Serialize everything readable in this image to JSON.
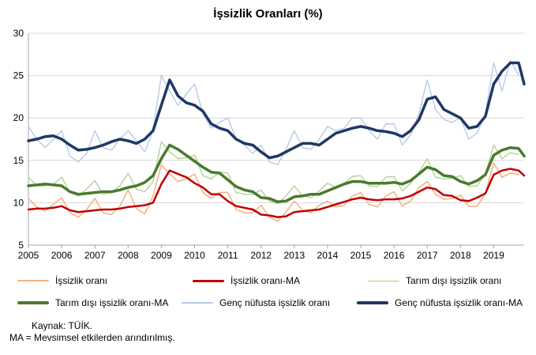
{
  "chart_data": {
    "type": "line",
    "title": "İşsizlik Oranları (%)",
    "xlabel": "",
    "ylabel": "",
    "ylim": [
      5,
      30
    ],
    "yticks": [
      "5",
      "10",
      "15",
      "20",
      "25",
      "30"
    ],
    "xlim": [
      "2005-01",
      "2019-12"
    ],
    "xticks": [
      "2005",
      "2006",
      "2007",
      "2008",
      "2009",
      "2010",
      "2011",
      "2012",
      "2013",
      "2014",
      "2015",
      "2016",
      "2017",
      "2018",
      "2019"
    ],
    "grid": "horizontal",
    "legend_position": "bottom",
    "series": [
      {
        "name": "İşsizlik oranı",
        "color": "#F4B183",
        "width": 1.5,
        "x": [
          "2005-01",
          "2005-04",
          "2005-07",
          "2005-10",
          "2006-01",
          "2006-04",
          "2006-07",
          "2006-10",
          "2007-01",
          "2007-04",
          "2007-07",
          "2007-10",
          "2008-01",
          "2008-04",
          "2008-07",
          "2008-10",
          "2009-01",
          "2009-04",
          "2009-07",
          "2009-10",
          "2010-01",
          "2010-04",
          "2010-07",
          "2010-10",
          "2011-01",
          "2011-04",
          "2011-07",
          "2011-10",
          "2012-01",
          "2012-04",
          "2012-07",
          "2012-10",
          "2013-01",
          "2013-04",
          "2013-07",
          "2013-10",
          "2014-01",
          "2014-04",
          "2014-07",
          "2014-10",
          "2015-01",
          "2015-04",
          "2015-07",
          "2015-10",
          "2016-01",
          "2016-04",
          "2016-07",
          "2016-10",
          "2017-01",
          "2017-04",
          "2017-07",
          "2017-10",
          "2018-01",
          "2018-04",
          "2018-07",
          "2018-10",
          "2019-01",
          "2019-04",
          "2019-07",
          "2019-10"
        ],
        "y": [
          10.5,
          9.5,
          9.0,
          9.8,
          10.6,
          8.8,
          8.3,
          9.2,
          10.5,
          8.8,
          8.6,
          9.6,
          11.5,
          9.3,
          8.7,
          10.8,
          14.5,
          13.4,
          12.5,
          12.8,
          13.4,
          11.2,
          10.5,
          11.2,
          11.2,
          9.2,
          8.8,
          8.8,
          9.7,
          8.3,
          7.8,
          8.9,
          10.2,
          9.1,
          8.8,
          9.7,
          10.2,
          9.5,
          9.7,
          10.8,
          11.2,
          9.8,
          9.5,
          10.8,
          11.3,
          9.6,
          10.2,
          11.8,
          12.5,
          11.0,
          10.4,
          10.5,
          10.9,
          9.6,
          9.6,
          11.1,
          14.7,
          13.0,
          13.5,
          13.3
        ]
      },
      {
        "name": "İşsizlik oranı-MA",
        "color": "#C00000",
        "width": 2.5,
        "x": [
          "2005-01",
          "2005-04",
          "2005-07",
          "2005-10",
          "2006-01",
          "2006-04",
          "2006-07",
          "2006-10",
          "2007-01",
          "2007-04",
          "2007-07",
          "2007-10",
          "2008-01",
          "2008-04",
          "2008-07",
          "2008-10",
          "2009-01",
          "2009-04",
          "2009-07",
          "2009-10",
          "2010-01",
          "2010-04",
          "2010-07",
          "2010-10",
          "2011-01",
          "2011-04",
          "2011-07",
          "2011-10",
          "2012-01",
          "2012-04",
          "2012-07",
          "2012-10",
          "2013-01",
          "2013-04",
          "2013-07",
          "2013-10",
          "2014-01",
          "2014-04",
          "2014-07",
          "2014-10",
          "2015-01",
          "2015-04",
          "2015-07",
          "2015-10",
          "2016-01",
          "2016-04",
          "2016-07",
          "2016-10",
          "2017-01",
          "2017-04",
          "2017-07",
          "2017-10",
          "2018-01",
          "2018-04",
          "2018-07",
          "2018-10",
          "2019-01",
          "2019-04",
          "2019-07",
          "2019-10",
          "2019-12"
        ],
        "y": [
          9.2,
          9.3,
          9.3,
          9.4,
          9.6,
          9.1,
          8.9,
          9.0,
          9.1,
          9.2,
          9.2,
          9.3,
          9.5,
          9.6,
          9.7,
          10.0,
          12.2,
          13.8,
          13.4,
          13.0,
          12.3,
          11.8,
          11.0,
          11.0,
          10.2,
          9.6,
          9.4,
          9.2,
          8.6,
          8.5,
          8.3,
          8.4,
          8.9,
          9.0,
          9.1,
          9.2,
          9.5,
          9.8,
          10.1,
          10.4,
          10.6,
          10.4,
          10.3,
          10.4,
          10.4,
          10.5,
          10.8,
          11.3,
          11.8,
          11.6,
          10.9,
          10.8,
          10.3,
          10.2,
          10.6,
          11.1,
          13.3,
          13.8,
          14.0,
          13.8,
          13.2
        ]
      },
      {
        "name": "Tarım dışı işsizlik oranı",
        "color": "#A9D18E",
        "width": 1.3,
        "x": [
          "2005-01",
          "2005-04",
          "2005-07",
          "2005-10",
          "2006-01",
          "2006-04",
          "2006-07",
          "2006-10",
          "2007-01",
          "2007-04",
          "2007-07",
          "2007-10",
          "2008-01",
          "2008-04",
          "2008-07",
          "2008-10",
          "2009-01",
          "2009-04",
          "2009-07",
          "2009-10",
          "2010-01",
          "2010-04",
          "2010-07",
          "2010-10",
          "2011-01",
          "2011-04",
          "2011-07",
          "2011-10",
          "2012-01",
          "2012-04",
          "2012-07",
          "2012-10",
          "2013-01",
          "2013-04",
          "2013-07",
          "2013-10",
          "2014-01",
          "2014-04",
          "2014-07",
          "2014-10",
          "2015-01",
          "2015-04",
          "2015-07",
          "2015-10",
          "2016-01",
          "2016-04",
          "2016-07",
          "2016-10",
          "2017-01",
          "2017-04",
          "2017-07",
          "2017-10",
          "2018-01",
          "2018-04",
          "2018-07",
          "2018-10",
          "2019-01",
          "2019-04",
          "2019-07",
          "2019-10"
        ],
        "y": [
          13.0,
          12.0,
          12.0,
          12.2,
          13.0,
          11.2,
          10.8,
          11.6,
          12.6,
          11.0,
          11.2,
          12.0,
          13.5,
          11.6,
          11.3,
          12.5,
          17.2,
          16.0,
          15.2,
          15.3,
          15.6,
          13.2,
          12.8,
          13.6,
          13.5,
          11.2,
          11.0,
          11.0,
          11.5,
          10.2,
          9.9,
          10.8,
          12.0,
          10.8,
          10.6,
          11.4,
          12.3,
          11.8,
          12.3,
          13.1,
          13.2,
          12.0,
          11.9,
          13.0,
          13.1,
          11.4,
          12.3,
          13.6,
          15.2,
          13.0,
          12.8,
          12.9,
          13.2,
          11.9,
          12.0,
          13.4,
          16.8,
          15.2,
          15.9,
          15.7
        ]
      },
      {
        "name": "Tarım dışı işsizlik oranı-MA",
        "color": "#4A7A2E",
        "width": 3.5,
        "x": [
          "2005-01",
          "2005-04",
          "2005-07",
          "2005-10",
          "2006-01",
          "2006-04",
          "2006-07",
          "2006-10",
          "2007-01",
          "2007-04",
          "2007-07",
          "2007-10",
          "2008-01",
          "2008-04",
          "2008-07",
          "2008-10",
          "2009-01",
          "2009-04",
          "2009-07",
          "2009-10",
          "2010-01",
          "2010-04",
          "2010-07",
          "2010-10",
          "2011-01",
          "2011-04",
          "2011-07",
          "2011-10",
          "2012-01",
          "2012-04",
          "2012-07",
          "2012-10",
          "2013-01",
          "2013-04",
          "2013-07",
          "2013-10",
          "2014-01",
          "2014-04",
          "2014-07",
          "2014-10",
          "2015-01",
          "2015-04",
          "2015-07",
          "2015-10",
          "2016-01",
          "2016-04",
          "2016-07",
          "2016-10",
          "2017-01",
          "2017-04",
          "2017-07",
          "2017-10",
          "2018-01",
          "2018-04",
          "2018-07",
          "2018-10",
          "2019-01",
          "2019-04",
          "2019-07",
          "2019-10",
          "2019-12"
        ],
        "y": [
          12.0,
          12.1,
          12.2,
          12.1,
          12.0,
          11.3,
          11.0,
          11.1,
          11.2,
          11.3,
          11.3,
          11.5,
          11.8,
          12.0,
          12.4,
          13.2,
          15.2,
          16.8,
          16.3,
          15.6,
          14.9,
          14.2,
          13.6,
          13.5,
          12.7,
          11.9,
          11.5,
          11.3,
          10.6,
          10.5,
          10.1,
          10.2,
          10.7,
          10.8,
          11.0,
          11.0,
          11.4,
          11.8,
          12.2,
          12.5,
          12.5,
          12.3,
          12.3,
          12.3,
          12.4,
          12.2,
          12.6,
          13.4,
          14.2,
          13.9,
          13.2,
          13.1,
          12.5,
          12.2,
          12.6,
          13.3,
          15.6,
          16.2,
          16.5,
          16.4,
          15.5
        ]
      },
      {
        "name": "Genç nüfusta işsizlik oranı",
        "color": "#B4C7E7",
        "width": 1.3,
        "x": [
          "2005-01",
          "2005-04",
          "2005-07",
          "2005-10",
          "2006-01",
          "2006-04",
          "2006-07",
          "2006-10",
          "2007-01",
          "2007-04",
          "2007-07",
          "2007-10",
          "2008-01",
          "2008-04",
          "2008-07",
          "2008-10",
          "2009-01",
          "2009-04",
          "2009-07",
          "2009-10",
          "2010-01",
          "2010-04",
          "2010-07",
          "2010-10",
          "2011-01",
          "2011-04",
          "2011-07",
          "2011-10",
          "2012-01",
          "2012-04",
          "2012-07",
          "2012-10",
          "2013-01",
          "2013-04",
          "2013-07",
          "2013-10",
          "2014-01",
          "2014-04",
          "2014-07",
          "2014-10",
          "2015-01",
          "2015-04",
          "2015-07",
          "2015-10",
          "2016-01",
          "2016-04",
          "2016-07",
          "2016-10",
          "2017-01",
          "2017-04",
          "2017-07",
          "2017-10",
          "2018-01",
          "2018-04",
          "2018-07",
          "2018-10",
          "2019-01",
          "2019-04",
          "2019-07",
          "2019-10"
        ],
        "y": [
          19.0,
          17.5,
          16.5,
          17.5,
          18.5,
          15.5,
          14.8,
          15.8,
          18.5,
          16.5,
          16.2,
          17.5,
          18.5,
          17.3,
          16.0,
          18.5,
          25.0,
          23.2,
          21.5,
          22.8,
          24.0,
          20.5,
          18.8,
          19.5,
          20.0,
          17.5,
          16.8,
          15.8,
          16.8,
          14.8,
          14.5,
          16.3,
          18.5,
          16.5,
          16.3,
          17.5,
          19.0,
          18.5,
          18.8,
          20.0,
          20.0,
          18.5,
          17.5,
          19.3,
          19.3,
          16.8,
          18.0,
          20.5,
          24.5,
          21.0,
          19.8,
          19.5,
          20.0,
          17.5,
          18.2,
          20.5,
          26.5,
          23.2,
          26.8,
          25.0
        ]
      },
      {
        "name": "Genç nüfusta işsizlik oranı-MA",
        "color": "#1F3864",
        "width": 3.5,
        "x": [
          "2005-01",
          "2005-04",
          "2005-07",
          "2005-10",
          "2006-01",
          "2006-04",
          "2006-07",
          "2006-10",
          "2007-01",
          "2007-04",
          "2007-07",
          "2007-10",
          "2008-01",
          "2008-04",
          "2008-07",
          "2008-10",
          "2009-01",
          "2009-04",
          "2009-07",
          "2009-10",
          "2010-01",
          "2010-04",
          "2010-07",
          "2010-10",
          "2011-01",
          "2011-04",
          "2011-07",
          "2011-10",
          "2012-01",
          "2012-04",
          "2012-07",
          "2012-10",
          "2013-01",
          "2013-04",
          "2013-07",
          "2013-10",
          "2014-01",
          "2014-04",
          "2014-07",
          "2014-10",
          "2015-01",
          "2015-04",
          "2015-07",
          "2015-10",
          "2016-01",
          "2016-04",
          "2016-07",
          "2016-10",
          "2017-01",
          "2017-04",
          "2017-07",
          "2017-10",
          "2018-01",
          "2018-04",
          "2018-07",
          "2018-10",
          "2019-01",
          "2019-04",
          "2019-07",
          "2019-10",
          "2019-12"
        ],
        "y": [
          17.3,
          17.5,
          17.8,
          17.9,
          17.5,
          16.8,
          16.2,
          16.3,
          16.5,
          16.8,
          17.2,
          17.5,
          17.3,
          17.0,
          17.5,
          18.5,
          21.5,
          24.5,
          22.6,
          21.8,
          21.5,
          20.8,
          19.3,
          18.8,
          18.5,
          17.5,
          17.0,
          16.8,
          16.0,
          15.3,
          15.5,
          16.0,
          16.5,
          17.0,
          17.0,
          16.8,
          17.5,
          18.2,
          18.5,
          18.8,
          19.0,
          18.8,
          18.5,
          18.4,
          18.2,
          17.8,
          18.5,
          19.8,
          22.2,
          22.5,
          21.0,
          20.5,
          20.0,
          18.8,
          19.0,
          20.2,
          24.0,
          25.5,
          26.5,
          26.5,
          24.0
        ]
      }
    ]
  },
  "legend": [
    {
      "label": "İşsizlik oranı",
      "color": "#F4B183",
      "thickness": 2
    },
    {
      "label": "İşsizlik oranı-MA",
      "color": "#C00000",
      "thickness": 3
    },
    {
      "label": "Tarım dışı işsizlik oranı",
      "color": "#A9D18E",
      "thickness": 1
    },
    {
      "label": "Tarım dışı işsizlik oranı-MA",
      "color": "#4A7A2E",
      "thickness": 4
    },
    {
      "label": "Genç nüfusta işsizlik oranı",
      "color": "#B4C7E7",
      "thickness": 2
    },
    {
      "label": "Genç nüfusta işsizlik oranı-MA",
      "color": "#1F3864",
      "thickness": 4
    }
  ],
  "notes": {
    "source": "Kaynak: TÜİK.",
    "ma_note": "MA = Mevsimsel etkilerden arındırılmış."
  }
}
